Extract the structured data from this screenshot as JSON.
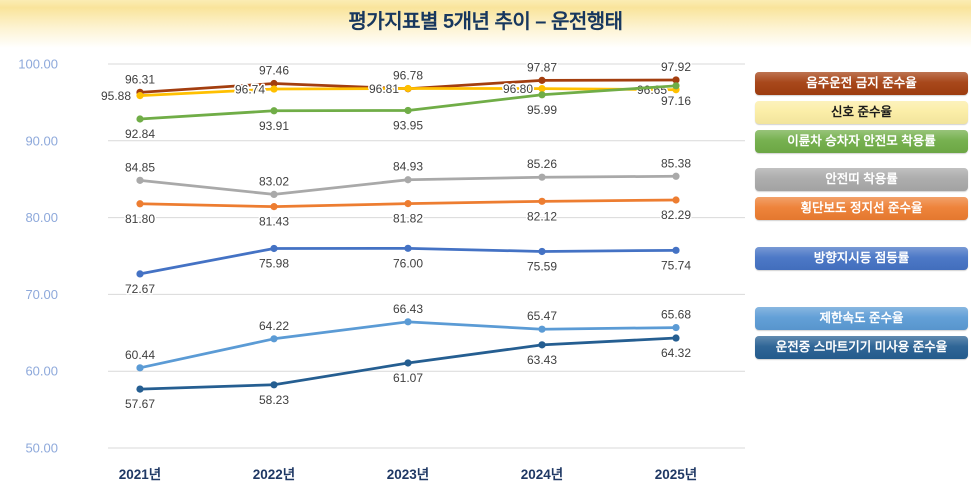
{
  "title": "평가지표별 5개년 추이 – 운전행태",
  "chart_data": {
    "type": "line",
    "title": "평가지표별 5개년 추이 – 운전행태",
    "categories": [
      "2021년",
      "2022년",
      "2023년",
      "2024년",
      "2025년"
    ],
    "ylim": [
      50,
      100
    ],
    "ytick_step": 10,
    "ytick_format_decimals": 2,
    "grid": true,
    "legend_position": "right",
    "axis_label_color": "#8EA9DB",
    "x_label_color": "#1F3864",
    "gridline_color": "#D9D9D9",
    "data_label_color": "#404040",
    "series": [
      {
        "name": "음주운전 금지 준수율",
        "color": "#A33E0F",
        "chip_color": "#A33E0F",
        "chip_text_color": "#FFFFFF",
        "label_position": "above",
        "values": [
          96.31,
          97.46,
          96.78,
          97.87,
          97.92
        ]
      },
      {
        "name": "신호 준수율",
        "color": "#FFC000",
        "chip_color": "#FBEDA3",
        "chip_text_color": "#1A1A1A",
        "label_position": "left",
        "values": [
          95.88,
          96.74,
          96.81,
          96.8,
          96.65
        ]
      },
      {
        "name": "이륜차 승차자 안전모 착용률",
        "color": "#70AD47",
        "chip_color": "#70AD47",
        "chip_text_color": "#FFFFFF",
        "label_position": "below",
        "values": [
          92.84,
          93.91,
          93.95,
          95.99,
          97.16
        ]
      },
      {
        "name": "안전띠 착용률",
        "color": "#A9A9A9",
        "chip_color": "#A9A9A9",
        "chip_text_color": "#FFFFFF",
        "label_position": "above",
        "values": [
          84.85,
          83.02,
          84.93,
          85.26,
          85.38
        ]
      },
      {
        "name": "횡단보도 정지선 준수율",
        "color": "#ED7D31",
        "chip_color": "#ED7D31",
        "chip_text_color": "#FFFFFF",
        "label_position": "below",
        "values": [
          81.8,
          81.43,
          81.82,
          82.12,
          82.29
        ]
      },
      {
        "name": "방향지시등 점등률",
        "color": "#4472C4",
        "chip_color": "#4472C4",
        "chip_text_color": "#FFFFFF",
        "label_position": "below",
        "values": [
          72.67,
          75.98,
          76.0,
          75.59,
          75.74
        ]
      },
      {
        "name": "제한속도 준수율",
        "color": "#5B9BD5",
        "chip_color": "#5B9BD5",
        "chip_text_color": "#FFFFFF",
        "label_position": "above",
        "values": [
          60.44,
          64.22,
          66.43,
          65.47,
          65.68
        ]
      },
      {
        "name": "운전중 스마트기기 미사용 준수율",
        "color": "#255E91",
        "chip_color": "#255E91",
        "chip_text_color": "#FFFFFF",
        "label_position": "below",
        "values": [
          57.67,
          58.23,
          61.07,
          63.43,
          64.32
        ]
      }
    ]
  }
}
